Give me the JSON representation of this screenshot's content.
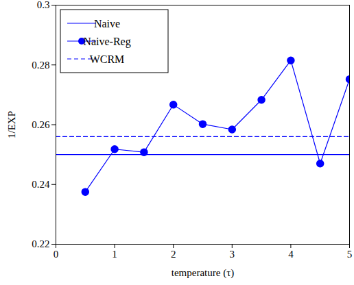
{
  "chart_data": {
    "type": "line",
    "xlabel": "temperature (τ)",
    "ylabel": "1/EXP",
    "xlim": [
      0,
      5
    ],
    "ylim": [
      0.22,
      0.3
    ],
    "xticks": [
      0,
      1,
      2,
      3,
      4,
      5
    ],
    "yticks": [
      0.22,
      0.24,
      0.26,
      0.28,
      0.3
    ],
    "legend": "upper left",
    "series": [
      {
        "name": "Naive",
        "color": "#0000ff",
        "line_style": "solid",
        "x": [
          0,
          5
        ],
        "values": [
          0.25,
          0.25
        ]
      },
      {
        "name": "Naive-Reg",
        "color": "#0000ff",
        "line_style": "solid",
        "marker": "circle",
        "x": [
          0.5,
          1,
          1.5,
          2,
          2.5,
          3,
          3.5,
          4,
          4.5,
          5
        ],
        "values": [
          0.2375,
          0.2518,
          0.2508,
          0.2667,
          0.2602,
          0.2584,
          0.2683,
          0.2815,
          0.247,
          0.2752
        ]
      },
      {
        "name": "WCRM",
        "color": "#0000ff",
        "line_style": "dashed",
        "x": [
          0,
          5
        ],
        "values": [
          0.256,
          0.256
        ]
      }
    ]
  }
}
